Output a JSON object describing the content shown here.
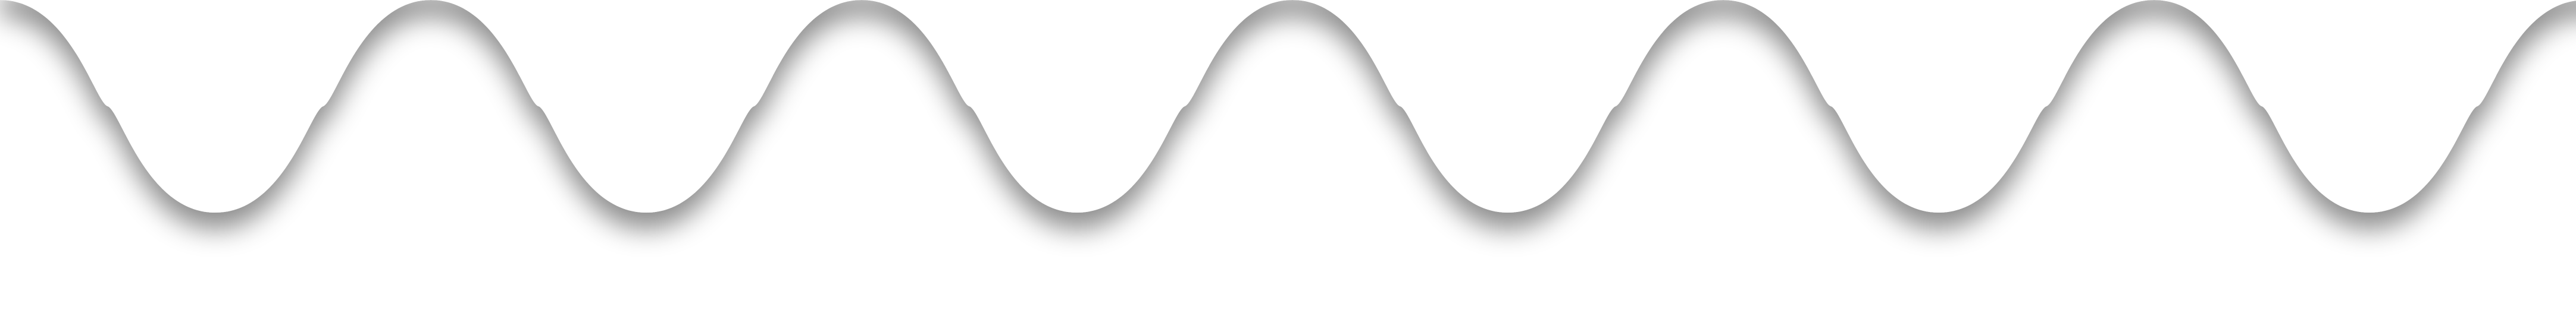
{
  "divider": {
    "fill_color": "#ffffff",
    "shadow_color": "#000000",
    "shadow_opacity": 0.45,
    "background_color": "transparent"
  }
}
